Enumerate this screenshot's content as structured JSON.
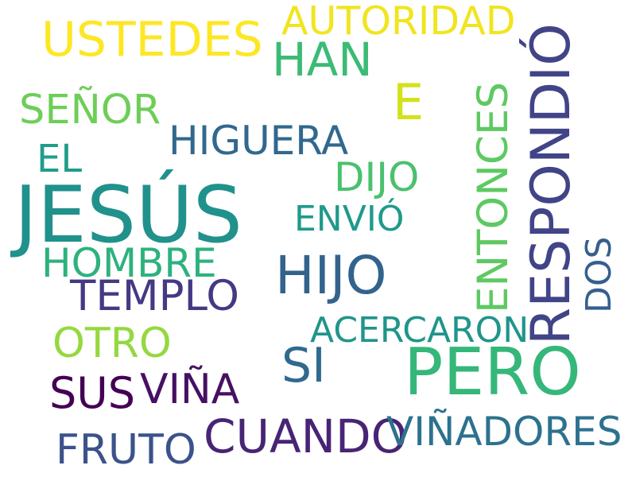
{
  "words": {
    "jesus": {
      "text": "JESÚS",
      "color": "#21918c"
    },
    "pero": {
      "text": "PERO",
      "color": "#35b779"
    },
    "respondio": {
      "text": "RESPONDIÓ",
      "color": "#414487"
    },
    "entonces": {
      "text": "ENTONCES",
      "color": "#5ec962"
    },
    "ustedes": {
      "text": "USTEDES",
      "color": "#fde725"
    },
    "autoridad": {
      "text": "AUTORIDAD",
      "color": "#f0e51f"
    },
    "han": {
      "text": "HAN",
      "color": "#3bbb75"
    },
    "e": {
      "text": "E",
      "color": "#d2e21b"
    },
    "senor": {
      "text": "SEÑOR",
      "color": "#6ece58"
    },
    "higuera": {
      "text": "HIGUERA",
      "color": "#31688e"
    },
    "el": {
      "text": "EL",
      "color": "#1f9e89"
    },
    "dijo": {
      "text": "DIJO",
      "color": "#4ac16d"
    },
    "envio": {
      "text": "ENVIÓ",
      "color": "#1f9a8a"
    },
    "hombre": {
      "text": "HOMBRE",
      "color": "#2db27d"
    },
    "hijo": {
      "text": "HIJO",
      "color": "#33638d"
    },
    "dos": {
      "text": "DOS",
      "color": "#355f8d"
    },
    "templo": {
      "text": "TEMPLO",
      "color": "#443983"
    },
    "acercaron": {
      "text": "ACERCARON",
      "color": "#1f958b"
    },
    "otro": {
      "text": "OTRO",
      "color": "#95d840"
    },
    "si": {
      "text": "SI",
      "color": "#306a8e"
    },
    "sus": {
      "text": "SUS",
      "color": "#440154"
    },
    "vina": {
      "text": "VIÑA",
      "color": "#471063"
    },
    "cuando": {
      "text": "CUANDO",
      "color": "#482475"
    },
    "vinadores": {
      "text": "VIÑADORES",
      "color": "#2c728e"
    },
    "fruto": {
      "text": "FRUTO",
      "color": "#3b528b"
    }
  }
}
